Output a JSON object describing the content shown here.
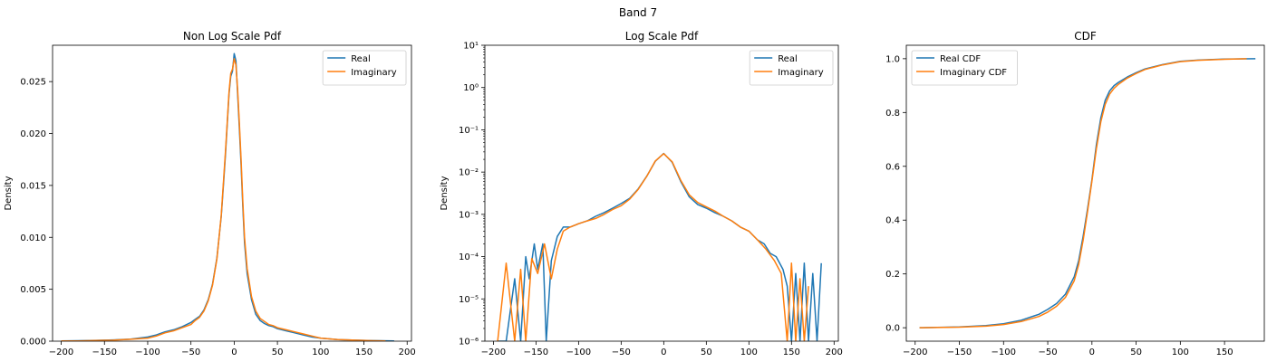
{
  "figure": {
    "suptitle": "Band 7"
  },
  "colors": {
    "real": "#1f77b4",
    "imaginary": "#ff7f0e"
  },
  "chart_data": [
    {
      "type": "line",
      "title": "Non Log Scale Pdf",
      "xlabel": "",
      "ylabel": "Density",
      "xlim": [
        -210,
        205
      ],
      "ylim": [
        0,
        0.0285
      ],
      "yscale": "linear",
      "xticks": [
        -200,
        -150,
        -100,
        -50,
        0,
        50,
        100,
        150,
        200
      ],
      "xtick_labels": [
        "−200",
        "−150",
        "−100",
        "−50",
        "0",
        "50",
        "100",
        "150",
        "200"
      ],
      "yticks": [
        0,
        0.005,
        0.01,
        0.015,
        0.02,
        0.025
      ],
      "ytick_labels": [
        "0.000",
        "0.005",
        "0.010",
        "0.015",
        "0.020",
        "0.025"
      ],
      "legend_position": "top-right",
      "series": [
        {
          "name": "Real",
          "color": "#1f77b4",
          "x": [
            -200,
            -180,
            -160,
            -140,
            -120,
            -100,
            -90,
            -80,
            -70,
            -60,
            -50,
            -45,
            -40,
            -35,
            -30,
            -25,
            -20,
            -15,
            -12,
            -10,
            -8,
            -6,
            -4,
            -2,
            0,
            2,
            4,
            6,
            8,
            10,
            12,
            15,
            20,
            25,
            30,
            35,
            40,
            45,
            50,
            60,
            70,
            80,
            90,
            100,
            120,
            140,
            160,
            185
          ],
          "y": [
            2e-05,
            4e-05,
            8e-05,
            0.00012,
            0.0002,
            0.0004,
            0.0006,
            0.0009,
            0.0011,
            0.0014,
            0.0018,
            0.0021,
            0.0024,
            0.003,
            0.004,
            0.0055,
            0.008,
            0.012,
            0.0155,
            0.018,
            0.021,
            0.0238,
            0.0255,
            0.026,
            0.0277,
            0.027,
            0.0238,
            0.0205,
            0.017,
            0.013,
            0.0095,
            0.0065,
            0.004,
            0.0026,
            0.002,
            0.0017,
            0.0015,
            0.0014,
            0.0012,
            0.001,
            0.0008,
            0.0006,
            0.0004,
            0.0003,
            0.00015,
            0.0001,
            5e-05,
            2e-05
          ]
        },
        {
          "name": "Imaginary",
          "color": "#ff7f0e",
          "x": [
            -200,
            -180,
            -160,
            -140,
            -120,
            -100,
            -90,
            -80,
            -70,
            -60,
            -50,
            -45,
            -40,
            -35,
            -30,
            -25,
            -20,
            -15,
            -12,
            -10,
            -8,
            -6,
            -4,
            -2,
            0,
            2,
            4,
            6,
            8,
            10,
            12,
            15,
            20,
            25,
            30,
            35,
            40,
            45,
            50,
            60,
            70,
            80,
            90,
            100,
            120,
            140,
            160,
            175
          ],
          "y": [
            2e-05,
            3e-05,
            6e-05,
            0.0001,
            0.00018,
            0.0003,
            0.0005,
            0.0008,
            0.001,
            0.0013,
            0.0016,
            0.002,
            0.0023,
            0.0029,
            0.0039,
            0.0054,
            0.0079,
            0.0121,
            0.0158,
            0.0183,
            0.0212,
            0.024,
            0.0258,
            0.0262,
            0.0272,
            0.0266,
            0.0242,
            0.021,
            0.0175,
            0.0135,
            0.01,
            0.007,
            0.0043,
            0.0029,
            0.0022,
            0.0019,
            0.0016,
            0.0015,
            0.0013,
            0.0011,
            0.0009,
            0.0007,
            0.0005,
            0.0003,
            0.00016,
            0.0001,
            4e-05,
            2e-05
          ]
        }
      ]
    },
    {
      "type": "line",
      "title": "Log Scale Pdf",
      "xlabel": "",
      "ylabel": "Density",
      "xlim": [
        -210,
        205
      ],
      "ylim": [
        1e-06,
        10
      ],
      "yscale": "log",
      "xticks": [
        -200,
        -150,
        -100,
        -50,
        0,
        50,
        100,
        150,
        200
      ],
      "xtick_labels": [
        "−200",
        "−150",
        "−100",
        "−50",
        "0",
        "50",
        "100",
        "150",
        "200"
      ],
      "yticks": [
        1e-06,
        1e-05,
        0.0001,
        0.001,
        0.01,
        0.1,
        1,
        10
      ],
      "ytick_labels": [
        "10⁻⁶",
        "10⁻⁵",
        "10⁻⁴",
        "10⁻³",
        "10⁻²",
        "10⁻¹",
        "10⁰",
        "10¹"
      ],
      "legend_position": "top-right",
      "series": [
        {
          "name": "Real",
          "color": "#1f77b4",
          "x": [
            -195,
            -185,
            -175,
            -168,
            -162,
            -158,
            -152,
            -148,
            -142,
            -138,
            -132,
            -125,
            -118,
            -110,
            -100,
            -90,
            -80,
            -70,
            -60,
            -50,
            -40,
            -30,
            -20,
            -10,
            0,
            10,
            20,
            30,
            40,
            50,
            60,
            70,
            80,
            90,
            100,
            110,
            118,
            125,
            132,
            140,
            145,
            150,
            155,
            160,
            165,
            170,
            175,
            180,
            185
          ],
          "y": [
            1e-06,
            1e-06,
            3e-05,
            1e-06,
            0.0001,
            3e-05,
            0.0002,
            5e-05,
            0.0002,
            1e-06,
            8e-05,
            0.0003,
            0.0005,
            0.0005,
            0.0006,
            0.0007,
            0.0009,
            0.0011,
            0.0014,
            0.0018,
            0.0024,
            0.004,
            0.008,
            0.018,
            0.0277,
            0.017,
            0.006,
            0.0026,
            0.0017,
            0.0014,
            0.0011,
            0.0009,
            0.0007,
            0.0005,
            0.0004,
            0.00025,
            0.0002,
            0.00012,
            0.0001,
            5e-05,
            2e-05,
            1e-06,
            4e-05,
            1e-06,
            7e-05,
            1e-06,
            4e-05,
            1e-06,
            7e-05
          ]
        },
        {
          "name": "Imaginary",
          "color": "#ff7f0e",
          "x": [
            -195,
            -185,
            -175,
            -168,
            -162,
            -155,
            -148,
            -140,
            -132,
            -125,
            -118,
            -110,
            -100,
            -90,
            -80,
            -70,
            -60,
            -50,
            -40,
            -30,
            -20,
            -10,
            0,
            10,
            20,
            30,
            40,
            50,
            60,
            70,
            80,
            90,
            100,
            110,
            120,
            130,
            138,
            145,
            150,
            155,
            160,
            165,
            170
          ],
          "y": [
            1e-06,
            7e-05,
            1e-06,
            5e-05,
            1e-06,
            9e-05,
            4e-05,
            0.0002,
            3e-05,
            0.00015,
            0.0004,
            0.0005,
            0.0006,
            0.0007,
            0.0008,
            0.001,
            0.0013,
            0.0016,
            0.0023,
            0.0039,
            0.0079,
            0.0183,
            0.0272,
            0.0175,
            0.0064,
            0.0029,
            0.0019,
            0.0015,
            0.0012,
            0.0009,
            0.0007,
            0.0005,
            0.0004,
            0.00025,
            0.00015,
            8e-05,
            4e-05,
            1e-06,
            7e-05,
            1e-06,
            3e-05,
            1e-06,
            2e-05
          ]
        }
      ]
    },
    {
      "type": "line",
      "title": "CDF",
      "xlabel": "",
      "ylabel": "",
      "xlim": [
        -210,
        195
      ],
      "ylim": [
        -0.05,
        1.05
      ],
      "yscale": "linear",
      "xticks": [
        -200,
        -150,
        -100,
        -50,
        0,
        50,
        100,
        150
      ],
      "xtick_labels": [
        "−200",
        "−150",
        "−100",
        "−50",
        "0",
        "50",
        "100",
        "150"
      ],
      "yticks": [
        0,
        0.2,
        0.4,
        0.6,
        0.8,
        1.0
      ],
      "ytick_labels": [
        "0.0",
        "0.2",
        "0.4",
        "0.6",
        "0.8",
        "1.0"
      ],
      "legend_position": "top-left",
      "series": [
        {
          "name": "Real CDF",
          "color": "#1f77b4",
          "x": [
            -195,
            -150,
            -120,
            -100,
            -80,
            -60,
            -50,
            -40,
            -30,
            -20,
            -15,
            -10,
            -5,
            0,
            5,
            10,
            15,
            20,
            25,
            30,
            40,
            50,
            60,
            80,
            100,
            120,
            150,
            185
          ],
          "y": [
            0,
            0.003,
            0.008,
            0.015,
            0.028,
            0.05,
            0.068,
            0.09,
            0.125,
            0.19,
            0.25,
            0.34,
            0.44,
            0.55,
            0.68,
            0.78,
            0.845,
            0.88,
            0.9,
            0.912,
            0.932,
            0.948,
            0.962,
            0.978,
            0.99,
            0.995,
            0.999,
            1.0
          ]
        },
        {
          "name": "Imaginary CDF",
          "color": "#ff7f0e",
          "x": [
            -195,
            -150,
            -120,
            -100,
            -80,
            -60,
            -50,
            -40,
            -30,
            -20,
            -15,
            -10,
            -5,
            0,
            5,
            10,
            15,
            20,
            25,
            30,
            40,
            50,
            60,
            80,
            100,
            120,
            150,
            175
          ],
          "y": [
            0,
            0.002,
            0.006,
            0.012,
            0.023,
            0.042,
            0.058,
            0.08,
            0.113,
            0.175,
            0.235,
            0.325,
            0.43,
            0.545,
            0.665,
            0.765,
            0.83,
            0.868,
            0.89,
            0.905,
            0.928,
            0.945,
            0.96,
            0.977,
            0.989,
            0.994,
            0.998,
            1.0
          ]
        }
      ]
    }
  ]
}
